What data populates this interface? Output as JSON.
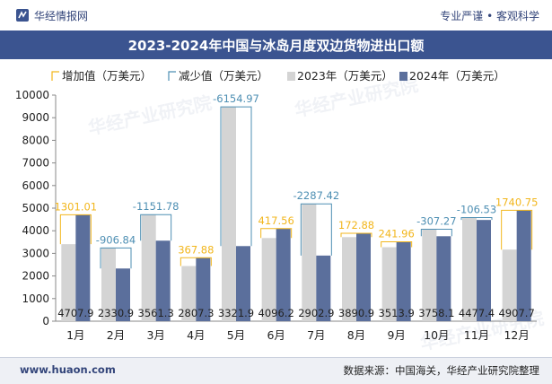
{
  "header": {
    "brand": "华经情报网",
    "tagline": "专业严谨 • 客观科学"
  },
  "title": "2023-2024年中国与冰岛月度双边货物进出口额",
  "footer": {
    "url": "www.huaon.com",
    "source": "数据来源：中国海关，华经产业研究院整理"
  },
  "watermark": "华经产业研究院",
  "colors": {
    "bar2023": "#d4d4d4",
    "bar2024": "#5b6f9c",
    "increase": "#f2b61c",
    "decrease": "#4e8fb3",
    "title_bg": "#3b5490"
  },
  "chart_data": {
    "type": "bar",
    "categories": [
      "1月",
      "2月",
      "3月",
      "4月",
      "5月",
      "6月",
      "7月",
      "8月",
      "9月",
      "10月",
      "11月",
      "12月"
    ],
    "series": [
      {
        "name": "2023年（万美元）",
        "values": [
          3406.89,
          3237.74,
          4713.08,
          2439.42,
          9476.87,
          3678.64,
          5190.32,
          3718.02,
          3271.94,
          4065.37,
          4583.93,
          3166.95
        ]
      },
      {
        "name": "2024年（万美元）",
        "values": [
          4707.9,
          2330.9,
          3561.3,
          2807.3,
          3321.9,
          4096.2,
          2902.9,
          3890.9,
          3513.9,
          3758.1,
          4477.4,
          4907.7
        ]
      }
    ],
    "changes": [
      "1301.01",
      "-906.84",
      "-1151.78",
      "367.88",
      "-6154.97",
      "417.56",
      "-2287.42",
      "172.88",
      "241.96",
      "-307.27",
      "-106.53",
      "1740.75"
    ],
    "legend": [
      "增加值（万美元）",
      "减少值（万美元）",
      "2023年（万美元）",
      "2024年（万美元）"
    ],
    "legend_position": "top",
    "ylim": [
      0,
      10000
    ],
    "yticks": [
      0,
      1000,
      2000,
      3000,
      4000,
      5000,
      6000,
      7000,
      8000,
      9000,
      10000
    ],
    "grid": false
  }
}
